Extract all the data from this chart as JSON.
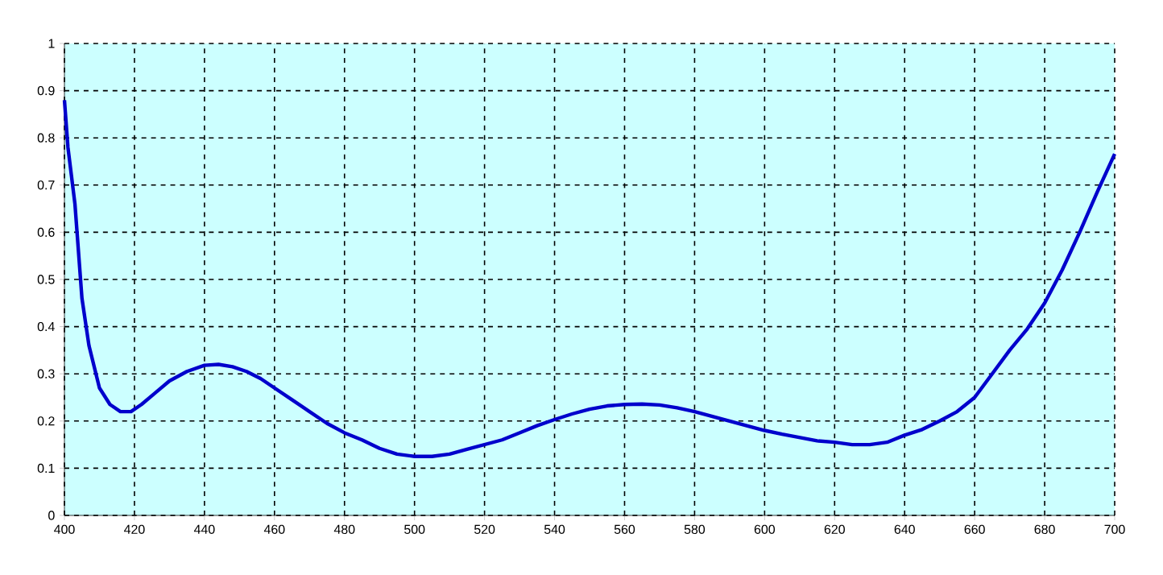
{
  "chart_data": {
    "type": "line",
    "x": [
      400,
      401,
      403,
      405,
      407,
      410,
      413,
      416,
      419,
      422,
      426,
      430,
      435,
      440,
      444,
      448,
      452,
      456,
      460,
      465,
      470,
      475,
      480,
      485,
      490,
      495,
      500,
      505,
      510,
      515,
      520,
      525,
      530,
      535,
      540,
      545,
      550,
      555,
      560,
      565,
      570,
      575,
      580,
      585,
      590,
      595,
      600,
      605,
      610,
      615,
      620,
      625,
      630,
      635,
      640,
      645,
      650,
      655,
      660,
      665,
      670,
      675,
      680,
      685,
      690,
      695,
      700
    ],
    "series": [
      {
        "color": "#0000cc",
        "values": [
          0.88,
          0.78,
          0.66,
          0.46,
          0.36,
          0.27,
          0.235,
          0.22,
          0.22,
          0.235,
          0.26,
          0.285,
          0.305,
          0.318,
          0.32,
          0.315,
          0.305,
          0.29,
          0.27,
          0.245,
          0.22,
          0.195,
          0.175,
          0.16,
          0.142,
          0.13,
          0.125,
          0.125,
          0.13,
          0.14,
          0.15,
          0.16,
          0.175,
          0.19,
          0.203,
          0.215,
          0.225,
          0.232,
          0.235,
          0.236,
          0.234,
          0.228,
          0.22,
          0.21,
          0.2,
          0.19,
          0.18,
          0.172,
          0.165,
          0.158,
          0.155,
          0.15,
          0.15,
          0.155,
          0.17,
          0.182,
          0.2,
          0.22,
          0.25,
          0.3,
          0.35,
          0.395,
          0.45,
          0.52,
          0.6,
          0.685,
          0.766
        ]
      }
    ],
    "xlim": [
      400,
      700
    ],
    "ylim": [
      0,
      1
    ],
    "xticks": [
      400,
      420,
      440,
      460,
      480,
      500,
      520,
      540,
      560,
      580,
      600,
      620,
      640,
      660,
      680,
      700
    ],
    "yticks": [
      0,
      0.1,
      0.2,
      0.3,
      0.4,
      0.5,
      0.6,
      0.7,
      0.8,
      0.9,
      1
    ],
    "grid": true,
    "line_style": "solid",
    "marker": "none"
  }
}
